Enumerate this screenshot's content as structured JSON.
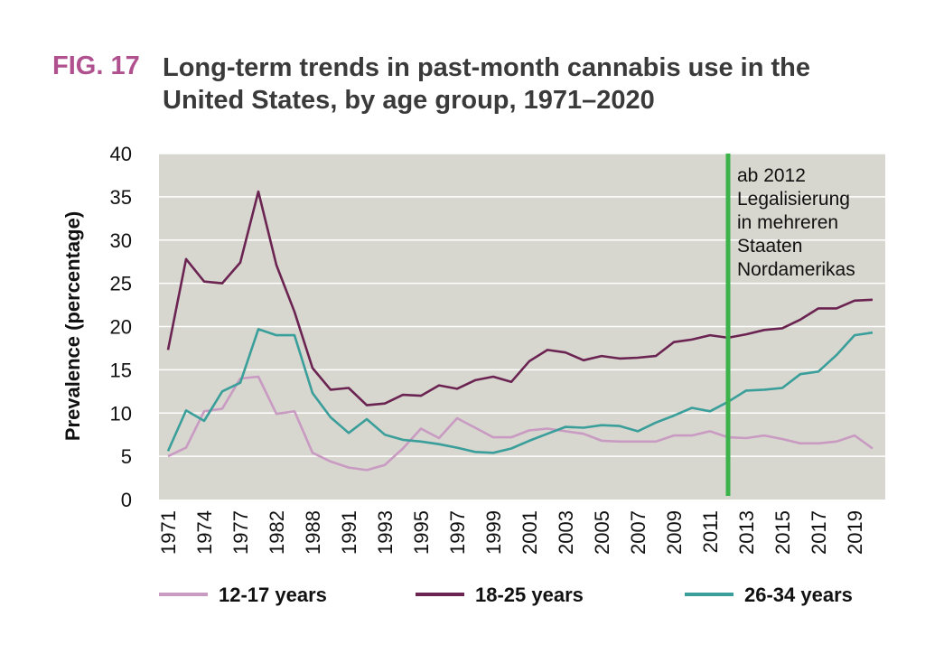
{
  "figure": {
    "label": "FIG. 17",
    "title": "Long-term trends in past-month cannabis use in the United States, by age group, 1971–2020"
  },
  "chart_data": {
    "type": "line",
    "title": "Long-term trends in past-month cannabis use in the United States, by age group, 1971–2020",
    "xlabel": "",
    "ylabel": "Prevalence (percentage)",
    "ylim": [
      0,
      40
    ],
    "yticks": [
      0,
      5,
      10,
      15,
      20,
      25,
      30,
      35,
      40
    ],
    "grid": true,
    "legend_position": "bottom",
    "x_ticks": [
      "1971",
      "1974",
      "1977",
      "1982",
      "1988",
      "1991",
      "1993",
      "1995",
      "1997",
      "1999",
      "2001",
      "2003",
      "2005",
      "2007",
      "2009",
      "2011",
      "2013",
      "2015",
      "2017",
      "2019"
    ],
    "x": [
      1971,
      1972,
      1974,
      1976,
      1977,
      1979,
      1982,
      1985,
      1988,
      1990,
      1991,
      1992,
      1993,
      1994,
      1995,
      1996,
      1997,
      1998,
      1999,
      2000,
      2001,
      2002,
      2003,
      2004,
      2005,
      2006,
      2007,
      2008,
      2009,
      2010,
      2011,
      2012,
      2013,
      2014,
      2015,
      2016,
      2017,
      2018,
      2019,
      2020
    ],
    "series": [
      {
        "name": "12-17 years",
        "color": "#c99ac2",
        "values": [
          5.0,
          6.0,
          10.2,
          10.5,
          14.0,
          14.2,
          9.9,
          10.2,
          5.4,
          4.4,
          3.7,
          3.4,
          4.0,
          5.9,
          8.2,
          7.1,
          9.4,
          8.3,
          7.2,
          7.2,
          8.0,
          8.2,
          7.9,
          7.6,
          6.8,
          6.7,
          6.7,
          6.7,
          7.4,
          7.4,
          7.9,
          7.2,
          7.1,
          7.4,
          7.0,
          6.5,
          6.5,
          6.7,
          7.4,
          5.9
        ]
      },
      {
        "name": "18-25 years",
        "color": "#6b2452",
        "values": [
          17.3,
          27.8,
          25.2,
          25.0,
          27.4,
          35.6,
          27.1,
          21.7,
          15.2,
          12.7,
          12.9,
          10.9,
          11.1,
          12.1,
          12.0,
          13.2,
          12.8,
          13.8,
          14.2,
          13.6,
          16.0,
          17.3,
          17.0,
          16.1,
          16.6,
          16.3,
          16.4,
          16.6,
          18.2,
          18.5,
          19.0,
          18.7,
          19.1,
          19.6,
          19.8,
          20.8,
          22.1,
          22.1,
          23.0,
          23.1
        ]
      },
      {
        "name": "26-34 years",
        "color": "#3a9e9a",
        "values": [
          5.6,
          10.3,
          9.1,
          12.5,
          13.5,
          19.7,
          19.0,
          19.0,
          12.3,
          9.5,
          7.7,
          9.3,
          7.5,
          6.9,
          6.7,
          6.4,
          6.0,
          5.5,
          5.4,
          5.9,
          6.8,
          7.6,
          8.4,
          8.3,
          8.6,
          8.5,
          7.9,
          8.9,
          9.7,
          10.6,
          10.2,
          11.3,
          12.6,
          12.7,
          12.9,
          14.5,
          14.8,
          16.7,
          19.0,
          19.3
        ]
      }
    ],
    "annotations": [
      {
        "x": 2012,
        "color": "#3cb34a",
        "lines": [
          "ab 2012",
          "Legalisierung",
          "in mehreren",
          "Staaten",
          "Nordamerikas"
        ]
      }
    ]
  }
}
